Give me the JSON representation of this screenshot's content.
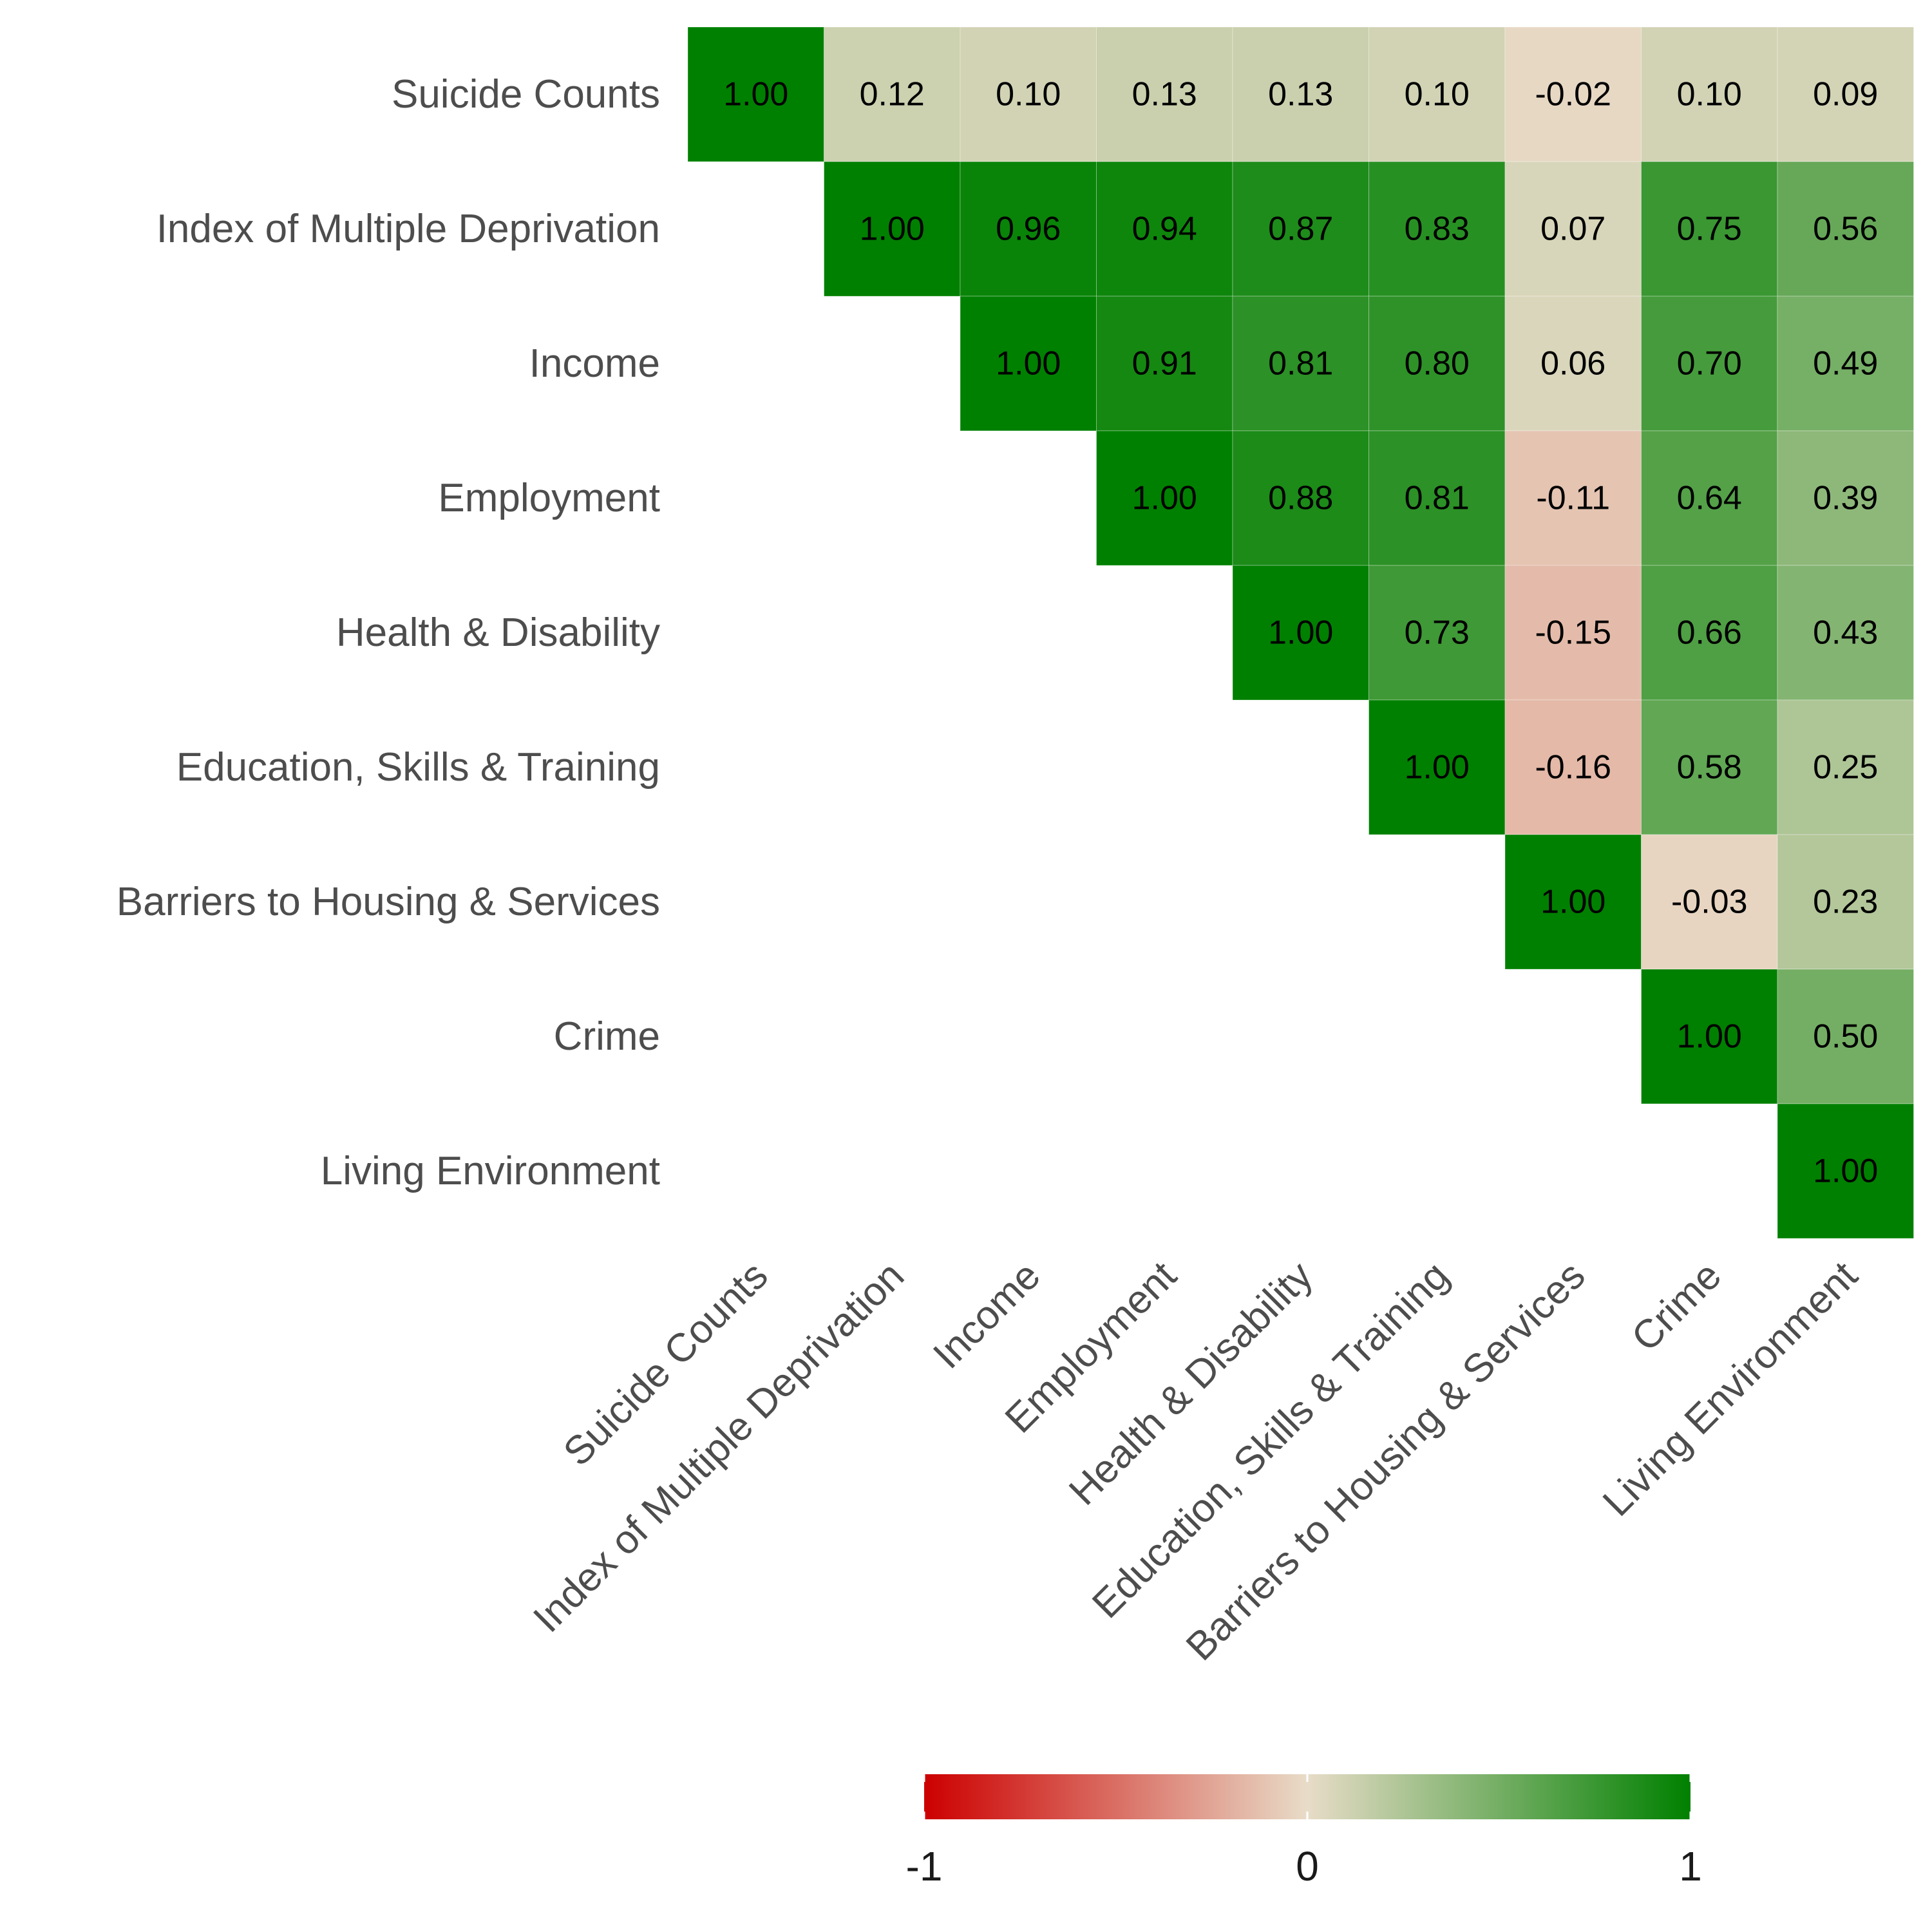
{
  "chart_data": {
    "type": "heatmap",
    "title": "",
    "variables": [
      "Suicide Counts",
      "Index of Multiple Deprivation",
      "Income",
      "Employment",
      "Health & Disability",
      "Education, Skills & Training",
      "Barriers to Housing & Services",
      "Crime",
      "Living Environment"
    ],
    "matrix": [
      [
        1.0,
        0.12,
        0.1,
        0.13,
        0.13,
        0.1,
        -0.02,
        0.1,
        0.09
      ],
      [
        null,
        1.0,
        0.96,
        0.94,
        0.87,
        0.83,
        0.07,
        0.75,
        0.56
      ],
      [
        null,
        null,
        1.0,
        0.91,
        0.81,
        0.8,
        0.06,
        0.7,
        0.49
      ],
      [
        null,
        null,
        null,
        1.0,
        0.88,
        0.81,
        -0.11,
        0.64,
        0.39
      ],
      [
        null,
        null,
        null,
        null,
        1.0,
        0.73,
        -0.15,
        0.66,
        0.43
      ],
      [
        null,
        null,
        null,
        null,
        null,
        1.0,
        -0.16,
        0.58,
        0.25
      ],
      [
        null,
        null,
        null,
        null,
        null,
        null,
        1.0,
        -0.03,
        0.23
      ],
      [
        null,
        null,
        null,
        null,
        null,
        null,
        null,
        1.0,
        0.5
      ],
      [
        null,
        null,
        null,
        null,
        null,
        null,
        null,
        null,
        1.0
      ]
    ],
    "value_format": "2 decimals",
    "color_scale": {
      "min": -1,
      "mid": 0,
      "max": 1,
      "low_color": "#CC0000",
      "mid_color": "#E8DCC8",
      "high_color": "#008000"
    },
    "legend": {
      "placement": "bottom",
      "ticks": [
        "-1",
        "0",
        "1"
      ]
    },
    "grid": false,
    "xlabel": "",
    "ylabel": ""
  }
}
